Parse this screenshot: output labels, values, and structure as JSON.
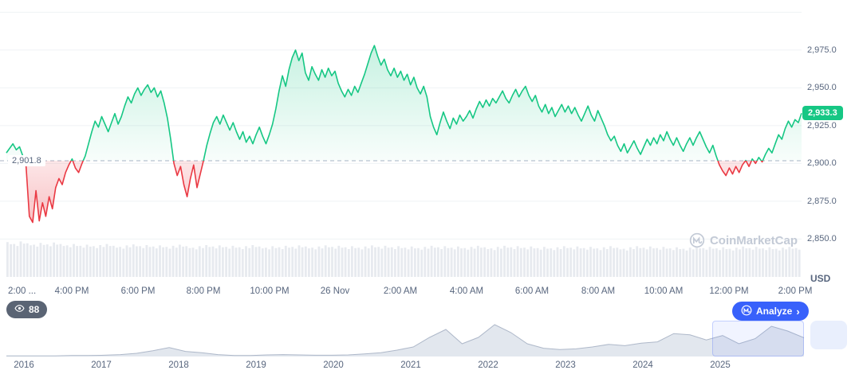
{
  "chart": {
    "current_price_label": "2,933.3",
    "baseline_label": "2,901.8",
    "usd_label": "USD",
    "watermark": "CoinMarketCap",
    "colors": {
      "up": "#16c784",
      "down": "#ea3943",
      "accent": "#3861fb",
      "baseline": "#a9b3c6",
      "grid": "#eff2f5",
      "axis_text": "#58667e",
      "volume": "#e7eaef",
      "minimap_fill": "#e2e7ee",
      "minimap_stroke": "#aeb8c9"
    }
  },
  "footer": {
    "views_count": "88",
    "analyze_label": "Analyze",
    "analyze_chevron": "›"
  },
  "chart_data": [
    {
      "type": "area",
      "name": "price-24h",
      "unit": "USD",
      "baseline": 2901.8,
      "current": 2933.3,
      "x_span_hours": 24.2,
      "ylim": [
        2845,
        3002
      ],
      "grid": true,
      "y_grid": [
        3000,
        2975,
        2950,
        2925,
        2900,
        2875,
        2850
      ],
      "y_ticks": [
        {
          "v": 2975,
          "label": "2,975.0"
        },
        {
          "v": 2950,
          "label": "2,950.0"
        },
        {
          "v": 2925,
          "label": "2,925.0"
        },
        {
          "v": 2900,
          "label": "2,900.0"
        },
        {
          "v": 2875,
          "label": "2,875.0"
        },
        {
          "v": 2850,
          "label": "2,850.0"
        }
      ],
      "x_ticks": [
        {
          "t": 0,
          "label": "2:00 ..."
        },
        {
          "t": 2,
          "label": "4:00 PM"
        },
        {
          "t": 4,
          "label": "6:00 PM"
        },
        {
          "t": 6,
          "label": "8:00 PM"
        },
        {
          "t": 8,
          "label": "10:00 PM"
        },
        {
          "t": 10,
          "label": "26 Nov"
        },
        {
          "t": 12,
          "label": "2:00 AM"
        },
        {
          "t": 14,
          "label": "4:00 AM"
        },
        {
          "t": 16,
          "label": "6:00 AM"
        },
        {
          "t": 18,
          "label": "8:00 AM"
        },
        {
          "t": 20,
          "label": "10:00 AM"
        },
        {
          "t": 22,
          "label": "12:00 PM"
        },
        {
          "t": 24,
          "label": "2:00 PM"
        }
      ],
      "values": [
        2907,
        2910,
        2913,
        2909,
        2911,
        2905,
        2898,
        2865,
        2861,
        2882,
        2862,
        2874,
        2865,
        2878,
        2870,
        2884,
        2890,
        2886,
        2894,
        2899,
        2903,
        2897,
        2894,
        2900,
        2905,
        2913,
        2921,
        2928,
        2924,
        2931,
        2926,
        2921,
        2927,
        2933,
        2926,
        2931,
        2938,
        2944,
        2940,
        2946,
        2950,
        2945,
        2949,
        2952,
        2947,
        2950,
        2944,
        2948,
        2940,
        2930,
        2916,
        2900,
        2892,
        2898,
        2886,
        2878,
        2890,
        2899,
        2884,
        2893,
        2902,
        2912,
        2920,
        2927,
        2931,
        2926,
        2932,
        2927,
        2922,
        2927,
        2921,
        2916,
        2921,
        2914,
        2918,
        2913,
        2919,
        2924,
        2918,
        2913,
        2919,
        2926,
        2936,
        2948,
        2958,
        2951,
        2962,
        2970,
        2975,
        2968,
        2973,
        2960,
        2955,
        2964,
        2959,
        2955,
        2962,
        2957,
        2963,
        2958,
        2961,
        2953,
        2948,
        2944,
        2949,
        2945,
        2951,
        2947,
        2953,
        2959,
        2966,
        2973,
        2978,
        2971,
        2965,
        2969,
        2962,
        2958,
        2963,
        2957,
        2961,
        2955,
        2959,
        2952,
        2957,
        2950,
        2946,
        2951,
        2944,
        2931,
        2924,
        2919,
        2927,
        2934,
        2928,
        2923,
        2930,
        2926,
        2932,
        2928,
        2931,
        2935,
        2930,
        2936,
        2941,
        2937,
        2942,
        2938,
        2943,
        2940,
        2944,
        2948,
        2943,
        2940,
        2945,
        2949,
        2944,
        2948,
        2951,
        2945,
        2941,
        2945,
        2938,
        2934,
        2939,
        2933,
        2937,
        2931,
        2935,
        2939,
        2934,
        2938,
        2933,
        2937,
        2932,
        2928,
        2933,
        2938,
        2932,
        2928,
        2935,
        2930,
        2925,
        2919,
        2915,
        2918,
        2912,
        2908,
        2913,
        2907,
        2911,
        2915,
        2910,
        2906,
        2911,
        2916,
        2912,
        2917,
        2913,
        2919,
        2915,
        2921,
        2916,
        2912,
        2917,
        2912,
        2908,
        2913,
        2917,
        2912,
        2917,
        2921,
        2916,
        2911,
        2907,
        2912,
        2905,
        2899,
        2895,
        2892,
        2897,
        2893,
        2898,
        2894,
        2899,
        2902,
        2898,
        2903,
        2900,
        2904,
        2901,
        2906,
        2910,
        2907,
        2913,
        2919,
        2916,
        2923,
        2928,
        2924,
        2929,
        2927,
        2933.3
      ],
      "volume_normalized": [
        0.95,
        0.9,
        0.97,
        0.92,
        0.88,
        0.93,
        0.89,
        0.94,
        0.9,
        0.86,
        0.9,
        0.85,
        0.88,
        0.84,
        0.87,
        0.9,
        0.85,
        0.82,
        0.86,
        0.89,
        0.84,
        0.87,
        0.83,
        0.86,
        0.82,
        0.85,
        0.88,
        0.84,
        0.8,
        0.84,
        0.87,
        0.83,
        0.86,
        0.82,
        0.85,
        0.81,
        0.84,
        0.87,
        0.83,
        0.8,
        0.84,
        0.81,
        0.85,
        0.82,
        0.86,
        0.83,
        0.8,
        0.83,
        0.86,
        0.82,
        0.85,
        0.81,
        0.84,
        0.8,
        0.83,
        0.86,
        0.82,
        0.85,
        0.81,
        0.84,
        0.8,
        0.83,
        0.79,
        0.82,
        0.85,
        0.81,
        0.84,
        0.8,
        0.83,
        0.79,
        0.82,
        0.85,
        0.81,
        0.78,
        0.82,
        0.85,
        0.81,
        0.84,
        0.8,
        0.83,
        0.79,
        0.82,
        0.78,
        0.81,
        0.84,
        0.8,
        0.83,
        0.79,
        0.82,
        0.78,
        0.81,
        0.84,
        0.8,
        0.77,
        0.81,
        0.84,
        0.8,
        0.83,
        0.79,
        0.82,
        0.78,
        0.81,
        0.77,
        0.8,
        0.83,
        0.79,
        0.82,
        0.78,
        0.81,
        0.77,
        0.8,
        0.83,
        0.79,
        0.82,
        0.78,
        0.81,
        0.77,
        0.8,
        0.82,
        0.79
      ]
    },
    {
      "type": "area",
      "name": "history-minimap",
      "x_tick_labels": [
        "2016",
        "2017",
        "2018",
        "2019",
        "2020",
        "2021",
        "2022",
        "2023",
        "2024",
        "2025"
      ],
      "selection_fraction": [
        0.885,
        1.0
      ],
      "values_normalized": [
        0.02,
        0.02,
        0.02,
        0.02,
        0.03,
        0.03,
        0.04,
        0.06,
        0.1,
        0.18,
        0.28,
        0.16,
        0.12,
        0.06,
        0.03,
        0.03,
        0.05,
        0.06,
        0.05,
        0.04,
        0.04,
        0.05,
        0.08,
        0.12,
        0.2,
        0.3,
        0.6,
        0.85,
        0.4,
        0.6,
        1.0,
        0.75,
        0.4,
        0.26,
        0.22,
        0.24,
        0.3,
        0.38,
        0.34,
        0.42,
        0.46,
        0.72,
        0.68,
        0.52,
        0.66,
        0.4,
        0.56,
        0.95,
        0.8,
        0.59
      ]
    }
  ]
}
